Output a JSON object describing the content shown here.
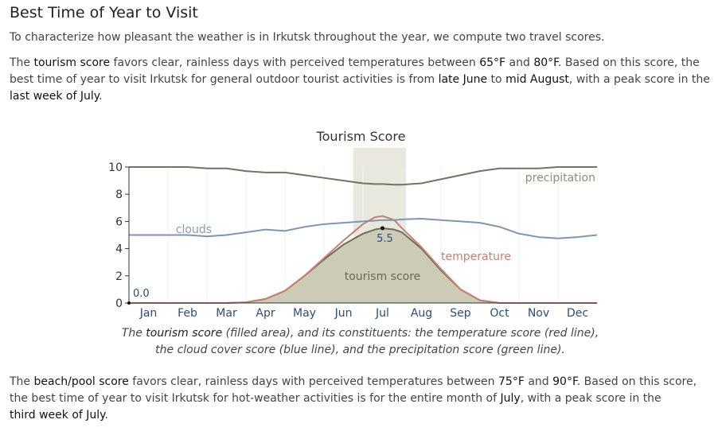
{
  "page": {
    "title": "Best Time of Year to Visit",
    "intro": "To characterize how pleasant the weather is in Irkutsk throughout the year, we compute two travel scores.",
    "tourism_paragraph": {
      "p1": "The ",
      "b1": "tourism score",
      "p2": " favors clear, rainless days with perceived temperatures between ",
      "b2": "65°F",
      "p3": " and ",
      "b3": "80°F",
      "p4": ". Based on this score, the best time of year to visit Irkutsk for general outdoor tourist activities is from ",
      "b4": "late June",
      "p5": " to ",
      "b5": "mid August",
      "p6": ", with a peak score in the",
      "b6": "last week of July",
      "p7": "."
    },
    "caption": {
      "p1": "The ",
      "b1": "tourism score",
      "p2": " (filled area), and its constituents: the temperature score (red line), the cloud cover score (blue line), and the precipitation score (green line)."
    },
    "beach_paragraph": {
      "p1": "The ",
      "b1": "beach/pool score",
      "p2": " favors clear, rainless days with perceived temperatures between ",
      "b2": "75°F",
      "p3": " and ",
      "b3": "90°F",
      "p4": ". Based on this score, the best time of year to visit Irkutsk for hot-weather activities is for the entire month of ",
      "b4": "July",
      "p5": ", with a peak score in the",
      "b5": "third week of July",
      "p6": "."
    }
  },
  "chart_data": {
    "type": "area",
    "title": "Tourism Score",
    "ylim": [
      0,
      10
    ],
    "yticks": [
      "0",
      "2",
      "4",
      "6",
      "8",
      "10"
    ],
    "months": [
      "Jan",
      "Feb",
      "Mar",
      "Apr",
      "May",
      "Jun",
      "Jul",
      "Aug",
      "Sep",
      "Oct",
      "Nov",
      "Dec"
    ],
    "x": [
      0,
      0.5,
      1,
      1.5,
      2,
      2.5,
      3,
      3.5,
      4,
      4.5,
      5,
      5.5,
      6,
      6.3,
      6.5,
      6.8,
      7,
      7.5,
      8,
      8.5,
      9,
      9.5,
      10,
      10.5,
      11,
      11.5,
      12
    ],
    "highlight_range": [
      5.75,
      7.1
    ],
    "colors": {
      "tourism_fill": "#cbcbb8",
      "tourism_line": "#6e6e58",
      "temperature": "#c97e6d",
      "clouds": "#7c96b3",
      "precipitation": "#737360",
      "highlight": "#e8e8de",
      "axis": "#333333",
      "month_label": "#2a4d7a"
    },
    "series": [
      {
        "name": "tourism score",
        "values": [
          0,
          0,
          0,
          0,
          0,
          0,
          0.05,
          0.3,
          0.9,
          2.0,
          3.2,
          4.3,
          5.1,
          5.4,
          5.5,
          5.4,
          5.2,
          4.0,
          2.4,
          1.0,
          0.2,
          0,
          0,
          0,
          0,
          0,
          0
        ]
      },
      {
        "name": "temperature",
        "values": [
          0,
          0,
          0,
          0,
          0,
          0,
          0.05,
          0.3,
          0.9,
          2.0,
          3.3,
          4.6,
          5.8,
          6.3,
          6.4,
          6.1,
          5.5,
          4.1,
          2.5,
          1.0,
          0.2,
          0,
          0,
          0,
          0,
          0,
          0
        ]
      },
      {
        "name": "clouds",
        "values": [
          5.0,
          5.0,
          5.0,
          5.0,
          4.9,
          5.0,
          5.2,
          5.4,
          5.3,
          5.6,
          5.8,
          5.9,
          6.0,
          6.05,
          6.1,
          6.1,
          6.15,
          6.2,
          6.1,
          6.0,
          5.9,
          5.6,
          5.1,
          4.85,
          4.75,
          4.85,
          5.0
        ]
      },
      {
        "name": "precipitation",
        "values": [
          10,
          10,
          10,
          10,
          9.9,
          9.9,
          9.7,
          9.6,
          9.6,
          9.4,
          9.2,
          9.0,
          8.8,
          8.75,
          8.75,
          8.7,
          8.7,
          8.8,
          9.1,
          9.4,
          9.7,
          9.9,
          9.9,
          9.9,
          10,
          10,
          10
        ]
      }
    ],
    "annotations": {
      "start_value": "0.0",
      "peak_value": "5.5",
      "peak_x": 6.5,
      "clouds_label": "clouds",
      "temperature_label": "temperature",
      "precipitation_label": "precipitation",
      "tourism_label": "tourism score"
    },
    "grid": true
  }
}
